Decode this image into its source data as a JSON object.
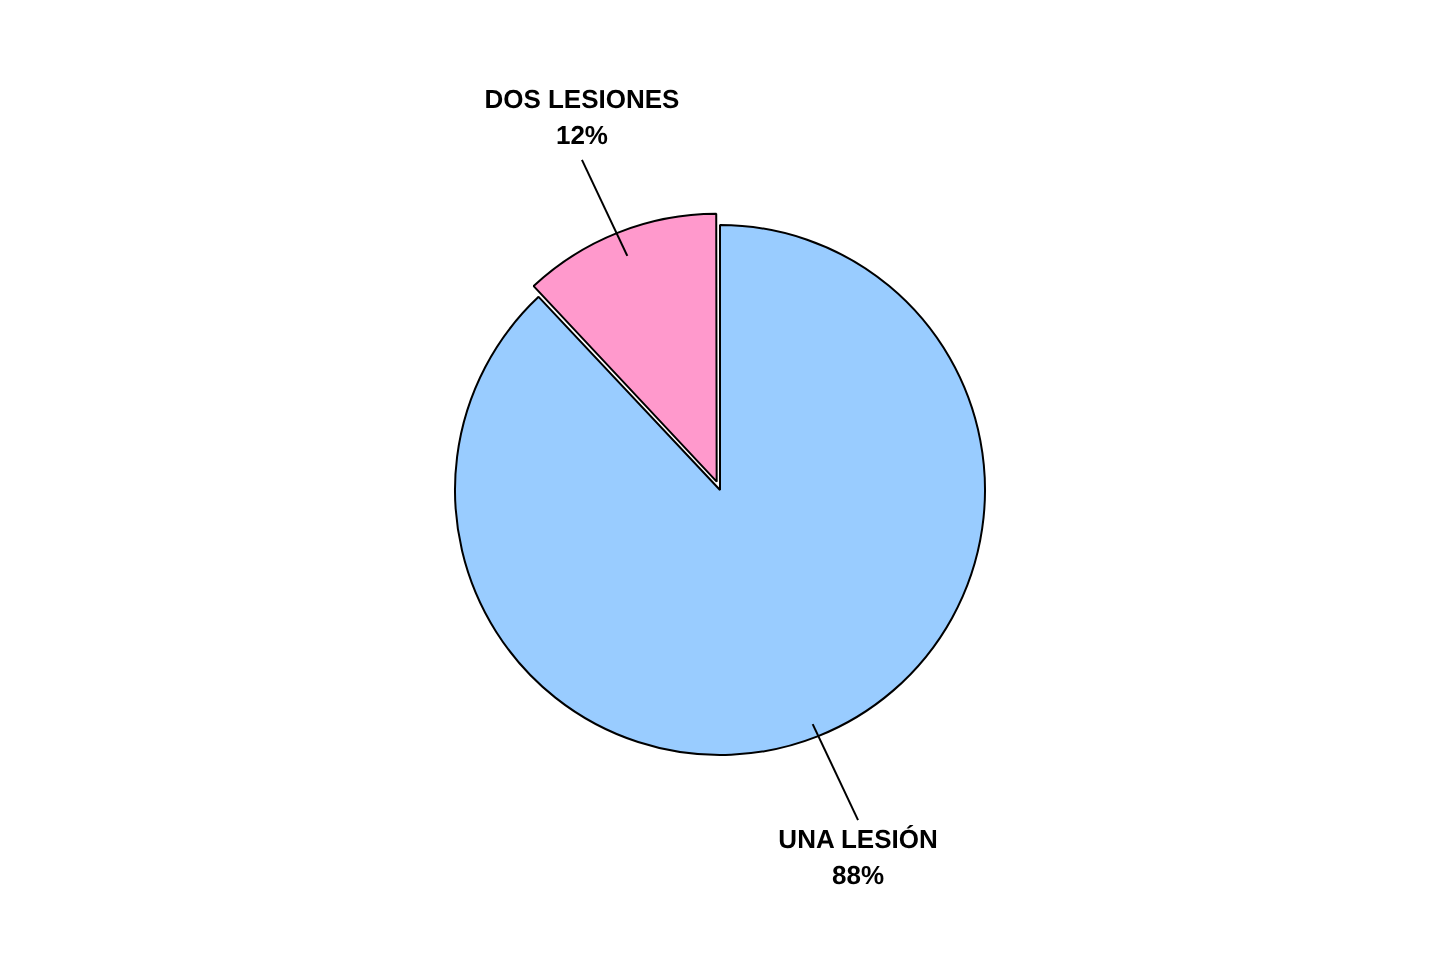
{
  "chart_data": {
    "type": "pie",
    "categories": [
      "UNA LESIÓN",
      "DOS LESIONES"
    ],
    "values": [
      88,
      12
    ],
    "colors": [
      "#99ccff",
      "#ff99cc"
    ],
    "value_labels": [
      "88%",
      "12%"
    ],
    "legend": false
  }
}
